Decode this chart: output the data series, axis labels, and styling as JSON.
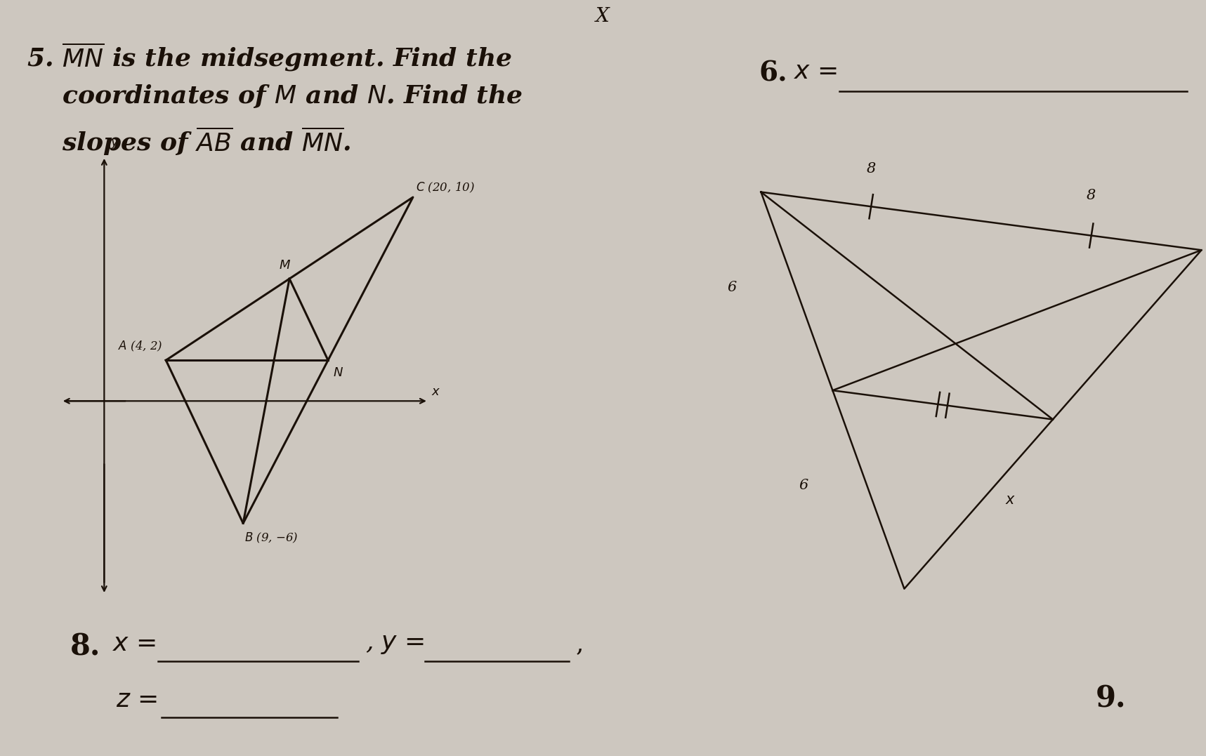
{
  "bg_color": "#cdc7bf",
  "fig_width": 17.17,
  "fig_height": 10.77,
  "problem5_line1": "5. $\\overline{MN}$ is the midsegment. Find the",
  "problem5_line2": "    coordinates of $M$ and $N$. Find the",
  "problem5_line3": "    slopes of $\\overline{AB}$ and $\\overline{MN}$.",
  "A": [
    4,
    2
  ],
  "B": [
    9,
    -6
  ],
  "C": [
    20,
    10
  ],
  "text_color": "#1a1008",
  "p6_label": "6.",
  "p6_x_label": "$x$ =",
  "p8_label": "8.",
  "p8_x_label": "$x$ =",
  "p8_y_label": ", $y$ =",
  "p8_comma": ",",
  "p8_z_label": "$z$ =",
  "p9_label": "9.",
  "top_X_label": "X"
}
